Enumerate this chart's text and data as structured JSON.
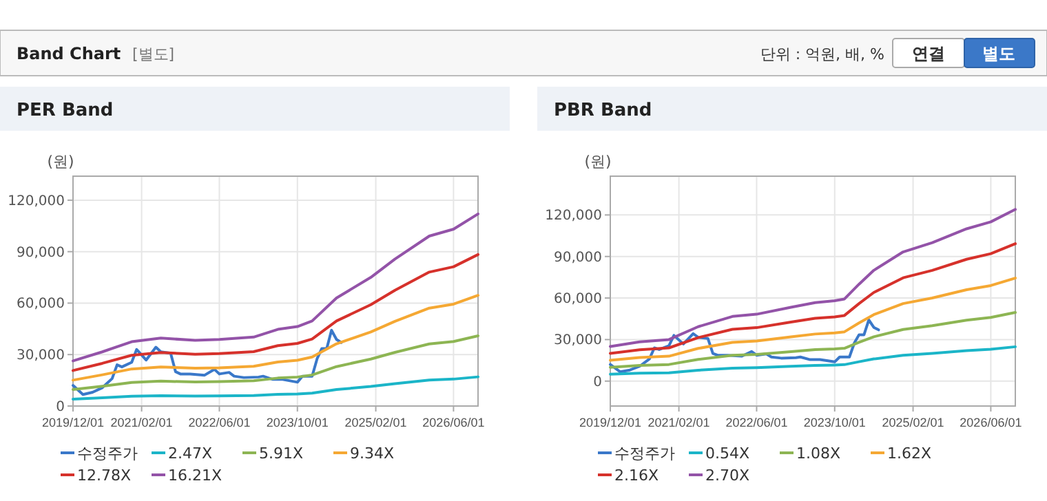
{
  "chart_data": [
    {
      "type": "line",
      "title": "PER Band",
      "ylabel": "(원)",
      "annotations": [
        "Band Chart",
        "[별도]",
        "단위 : 억원, 배, %",
        "연결",
        "별도"
      ],
      "xlim": [
        "2019-12-01",
        "2026-11-01"
      ],
      "xticks": [
        {
          "value": "2019-12-01",
          "label": "2019/12/01"
        },
        {
          "value": "2021-02-01",
          "label": "2021/02/01"
        },
        {
          "value": "2022-06-01",
          "label": "2022/06/01"
        },
        {
          "value": "2023-10-01",
          "label": "2023/10/01"
        },
        {
          "value": "2025-02-01",
          "label": "2025/02/01"
        },
        {
          "value": "2026-06-01",
          "label": "2026/06/01"
        }
      ],
      "ylim": [
        0,
        134000
      ],
      "yticks": [
        {
          "value": 0,
          "label": "0"
        },
        {
          "value": 30000,
          "label": "30,000"
        },
        {
          "value": 60000,
          "label": "60,000"
        },
        {
          "value": 90000,
          "label": "90,000"
        },
        {
          "value": 120000,
          "label": "120,000"
        }
      ],
      "grid": true,
      "legend": "bottom",
      "marker": "none",
      "line_style": "solid",
      "series": [
        {
          "name": "수정주가",
          "color": "#3a78c9",
          "x": [
            "2019-12-01",
            "2020-02-01",
            "2020-04-01",
            "2020-06-01",
            "2020-08-01",
            "2020-09-01",
            "2020-10-01",
            "2020-12-01",
            "2021-01-01",
            "2021-03-01",
            "2021-05-01",
            "2021-06-01",
            "2021-08-01",
            "2021-09-01",
            "2021-10-01",
            "2021-12-01",
            "2022-03-01",
            "2022-05-01",
            "2022-06-01",
            "2022-08-01",
            "2022-09-01",
            "2022-11-01",
            "2023-02-01",
            "2023-03-01",
            "2023-05-01",
            "2023-07-01",
            "2023-10-01",
            "2023-11-01",
            "2024-01-01",
            "2024-02-01",
            "2024-03-01",
            "2024-04-01",
            "2024-05-01",
            "2024-06-01",
            "2024-07-01"
          ],
          "values": [
            12000,
            6700,
            8000,
            10700,
            16000,
            24000,
            22800,
            25500,
            33000,
            26800,
            34300,
            31600,
            30800,
            20000,
            18700,
            18700,
            18000,
            21400,
            18700,
            19600,
            17400,
            16600,
            16900,
            17400,
            15500,
            15500,
            13900,
            17400,
            17400,
            27600,
            33500,
            33500,
            44200,
            38800,
            37000
          ]
        },
        {
          "name": "2.47X",
          "color": "#1bb5c8",
          "values": [
            4000,
            4800,
            5700,
            6000,
            5800,
            5900,
            6100,
            6800,
            7000,
            7500,
            9600,
            11400,
            13000,
            15100,
            15700,
            17000
          ]
        },
        {
          "name": "5.91X",
          "color": "#8db553",
          "values": [
            9600,
            11500,
            13700,
            14500,
            14000,
            14200,
            14700,
            16300,
            16900,
            18100,
            23000,
            27400,
            31300,
            36200,
            37600,
            40900
          ]
        },
        {
          "name": "9.34X",
          "color": "#f5a833",
          "values": [
            15100,
            18200,
            21600,
            22800,
            22100,
            22300,
            23200,
            25700,
            26700,
            28600,
            36300,
            43200,
            49400,
            57100,
            59400,
            64500
          ]
        },
        {
          "name": "12.78X",
          "color": "#d6312b",
          "values": [
            20700,
            24900,
            29600,
            31200,
            30200,
            30600,
            31700,
            35200,
            36500,
            39100,
            49600,
            59100,
            67500,
            78100,
            81200,
            88300
          ]
        },
        {
          "name": "16.21X",
          "color": "#9353a8",
          "values": [
            26300,
            31600,
            37500,
            39600,
            38300,
            38800,
            40200,
            44700,
            46300,
            49600,
            63000,
            75000,
            85700,
            99100,
            103100,
            112000
          ]
        }
      ],
      "x": [
        "2019-12-01",
        "2020-06-01",
        "2020-12-01",
        "2021-06-01",
        "2022-01-01",
        "2022-06-01",
        "2023-01-01",
        "2023-06-01",
        "2023-10-01",
        "2024-01-01",
        "2024-06-01",
        "2025-01-01",
        "2025-06-01",
        "2026-01-01",
        "2026-06-01",
        "2026-11-01"
      ]
    },
    {
      "type": "line",
      "title": "PBR Band",
      "ylabel": "(원)",
      "xlim": [
        "2019-12-01",
        "2026-11-01"
      ],
      "xticks": [
        {
          "value": "2019-12-01",
          "label": "2019/12/01"
        },
        {
          "value": "2021-02-01",
          "label": "2021/02/01"
        },
        {
          "value": "2022-06-01",
          "label": "2022/06/01"
        },
        {
          "value": "2023-10-01",
          "label": "2023/10/01"
        },
        {
          "value": "2025-02-01",
          "label": "2025/02/01"
        },
        {
          "value": "2026-06-01",
          "label": "2026/06/01"
        }
      ],
      "ylim": [
        -18000,
        148000
      ],
      "yticks": [
        {
          "value": 0,
          "label": "0"
        },
        {
          "value": 30000,
          "label": "30,000"
        },
        {
          "value": 60000,
          "label": "60,000"
        },
        {
          "value": 90000,
          "label": "90,000"
        },
        {
          "value": 120000,
          "label": "120,000"
        }
      ],
      "grid": true,
      "legend": "bottom",
      "marker": "none",
      "line_style": "solid",
      "series": [
        {
          "name": "수정주가",
          "color": "#3a78c9",
          "x": [
            "2019-12-01",
            "2020-02-01",
            "2020-04-01",
            "2020-06-01",
            "2020-08-01",
            "2020-09-01",
            "2020-10-01",
            "2020-12-01",
            "2021-01-01",
            "2021-03-01",
            "2021-05-01",
            "2021-06-01",
            "2021-08-01",
            "2021-09-01",
            "2021-10-01",
            "2021-12-01",
            "2022-03-01",
            "2022-05-01",
            "2022-06-01",
            "2022-08-01",
            "2022-09-01",
            "2022-11-01",
            "2023-02-01",
            "2023-03-01",
            "2023-05-01",
            "2023-07-01",
            "2023-10-01",
            "2023-11-01",
            "2024-01-01",
            "2024-02-01",
            "2024-03-01",
            "2024-04-01",
            "2024-05-01",
            "2024-06-01",
            "2024-07-01"
          ],
          "values": [
            12000,
            6700,
            8000,
            10700,
            16000,
            24000,
            22800,
            25500,
            33000,
            26800,
            34300,
            31600,
            30800,
            20000,
            18700,
            18700,
            18000,
            21400,
            18700,
            19600,
            17400,
            16600,
            16900,
            17400,
            15500,
            15500,
            13900,
            17400,
            17400,
            27600,
            33500,
            33500,
            44200,
            38800,
            37000
          ]
        },
        {
          "name": "0.54X",
          "color": "#1bb5c8",
          "values": [
            5000,
            5700,
            6000,
            7900,
            9300,
            9700,
            10700,
            11300,
            11600,
            11900,
            14000,
            16000,
            18700,
            20000,
            22000,
            23000,
            24800
          ]
        },
        {
          "name": "1.08X",
          "color": "#8db553",
          "values": [
            10000,
            11300,
            12000,
            15700,
            18700,
            19300,
            21300,
            22700,
            23200,
            23700,
            28000,
            32000,
            37300,
            40000,
            44000,
            46000,
            49600
          ]
        },
        {
          "name": "1.62X",
          "color": "#f5a833",
          "values": [
            15000,
            17000,
            18000,
            23600,
            28000,
            29000,
            32000,
            34000,
            34800,
            35600,
            42000,
            48000,
            56000,
            60000,
            66000,
            69000,
            74400
          ]
        },
        {
          "name": "2.16X",
          "color": "#d6312b",
          "values": [
            20000,
            22600,
            24000,
            31400,
            37400,
            38600,
            42600,
            45400,
            46400,
            47400,
            56000,
            64000,
            74600,
            80000,
            88000,
            92000,
            99200
          ]
        },
        {
          "name": "2.70X",
          "color": "#9353a8",
          "values": [
            25000,
            28300,
            30000,
            39300,
            46700,
            48300,
            53300,
            56700,
            58000,
            59300,
            70000,
            80000,
            93300,
            100000,
            110000,
            115000,
            124000
          ]
        }
      ],
      "x": [
        "2019-12-01",
        "2020-06-01",
        "2020-12-01",
        "2021-06-01",
        "2022-01-01",
        "2022-06-01",
        "2023-01-01",
        "2023-06-01",
        "2023-10-01",
        "2023-12-01",
        "2024-03-01",
        "2024-06-01",
        "2024-12-01",
        "2025-06-01",
        "2026-01-01",
        "2026-06-01",
        "2026-11-01"
      ]
    }
  ]
}
